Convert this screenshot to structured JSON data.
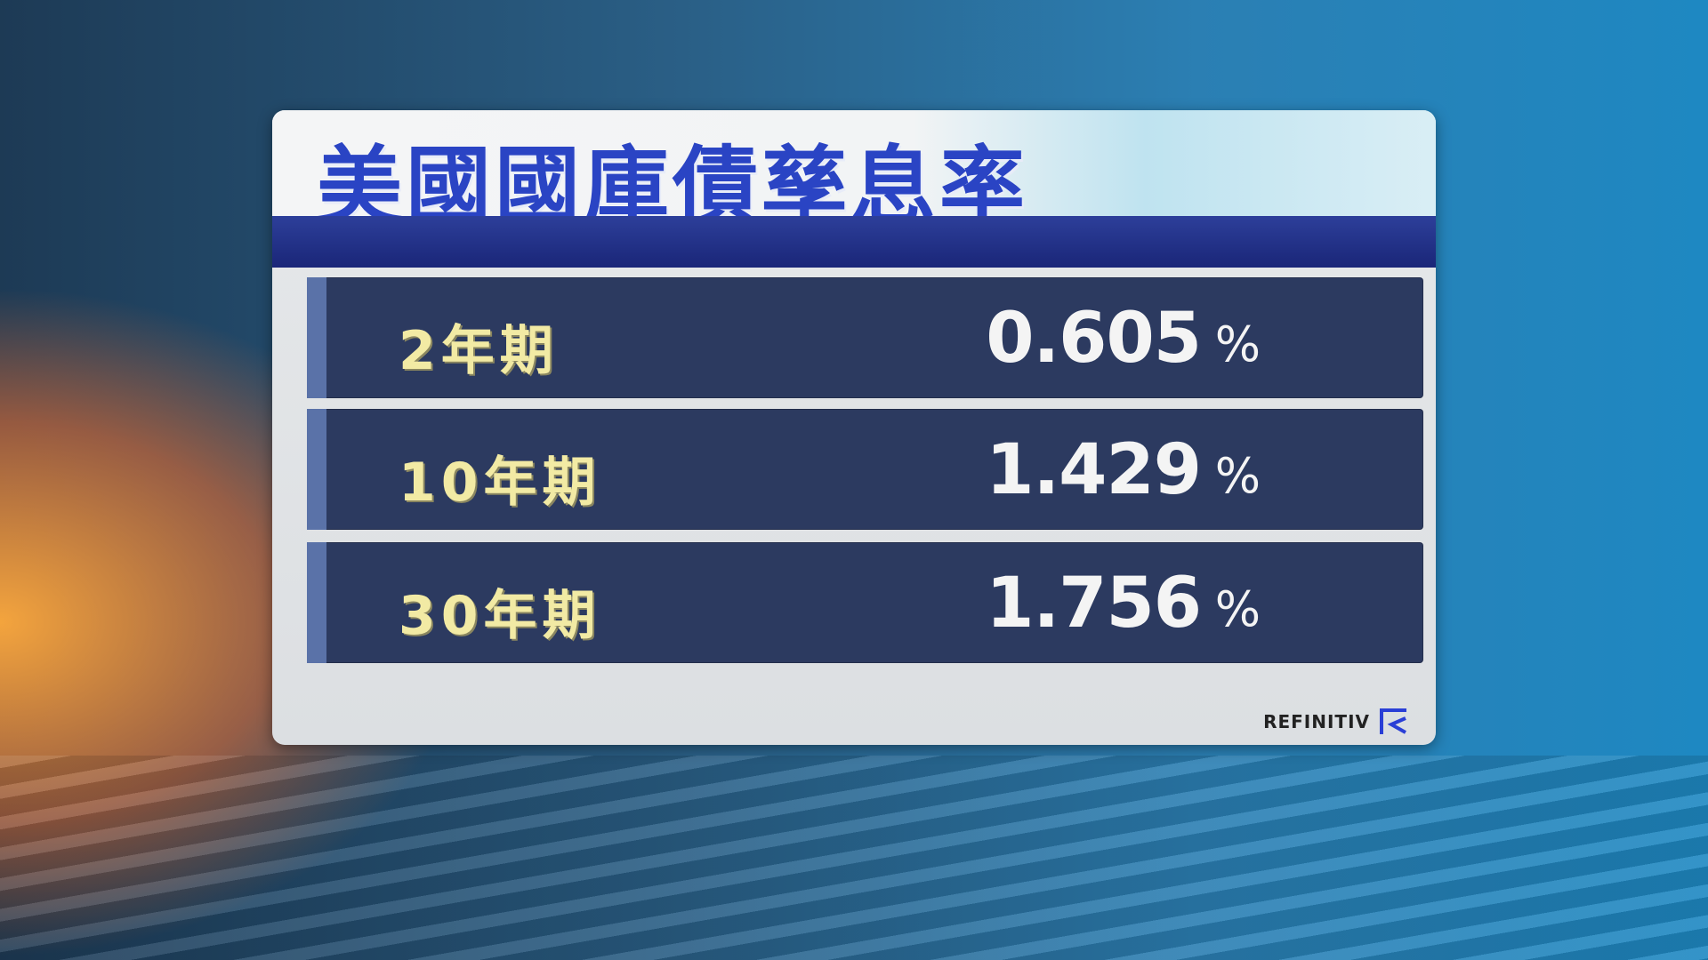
{
  "title": "美國國庫債孳息率",
  "rows": [
    {
      "label": "2年期",
      "value": "0.605",
      "unit": "%"
    },
    {
      "label": "10年期",
      "value": "1.429",
      "unit": "%"
    },
    {
      "label": "30年期",
      "value": "1.756",
      "unit": "%"
    }
  ],
  "source": {
    "name": "REFINITIV",
    "icon": "refinitiv-logo-icon"
  },
  "colors": {
    "title": "#2a44c4",
    "navy": "#1a2678",
    "row": "#2c3a60",
    "label": "#f2eaa4"
  }
}
